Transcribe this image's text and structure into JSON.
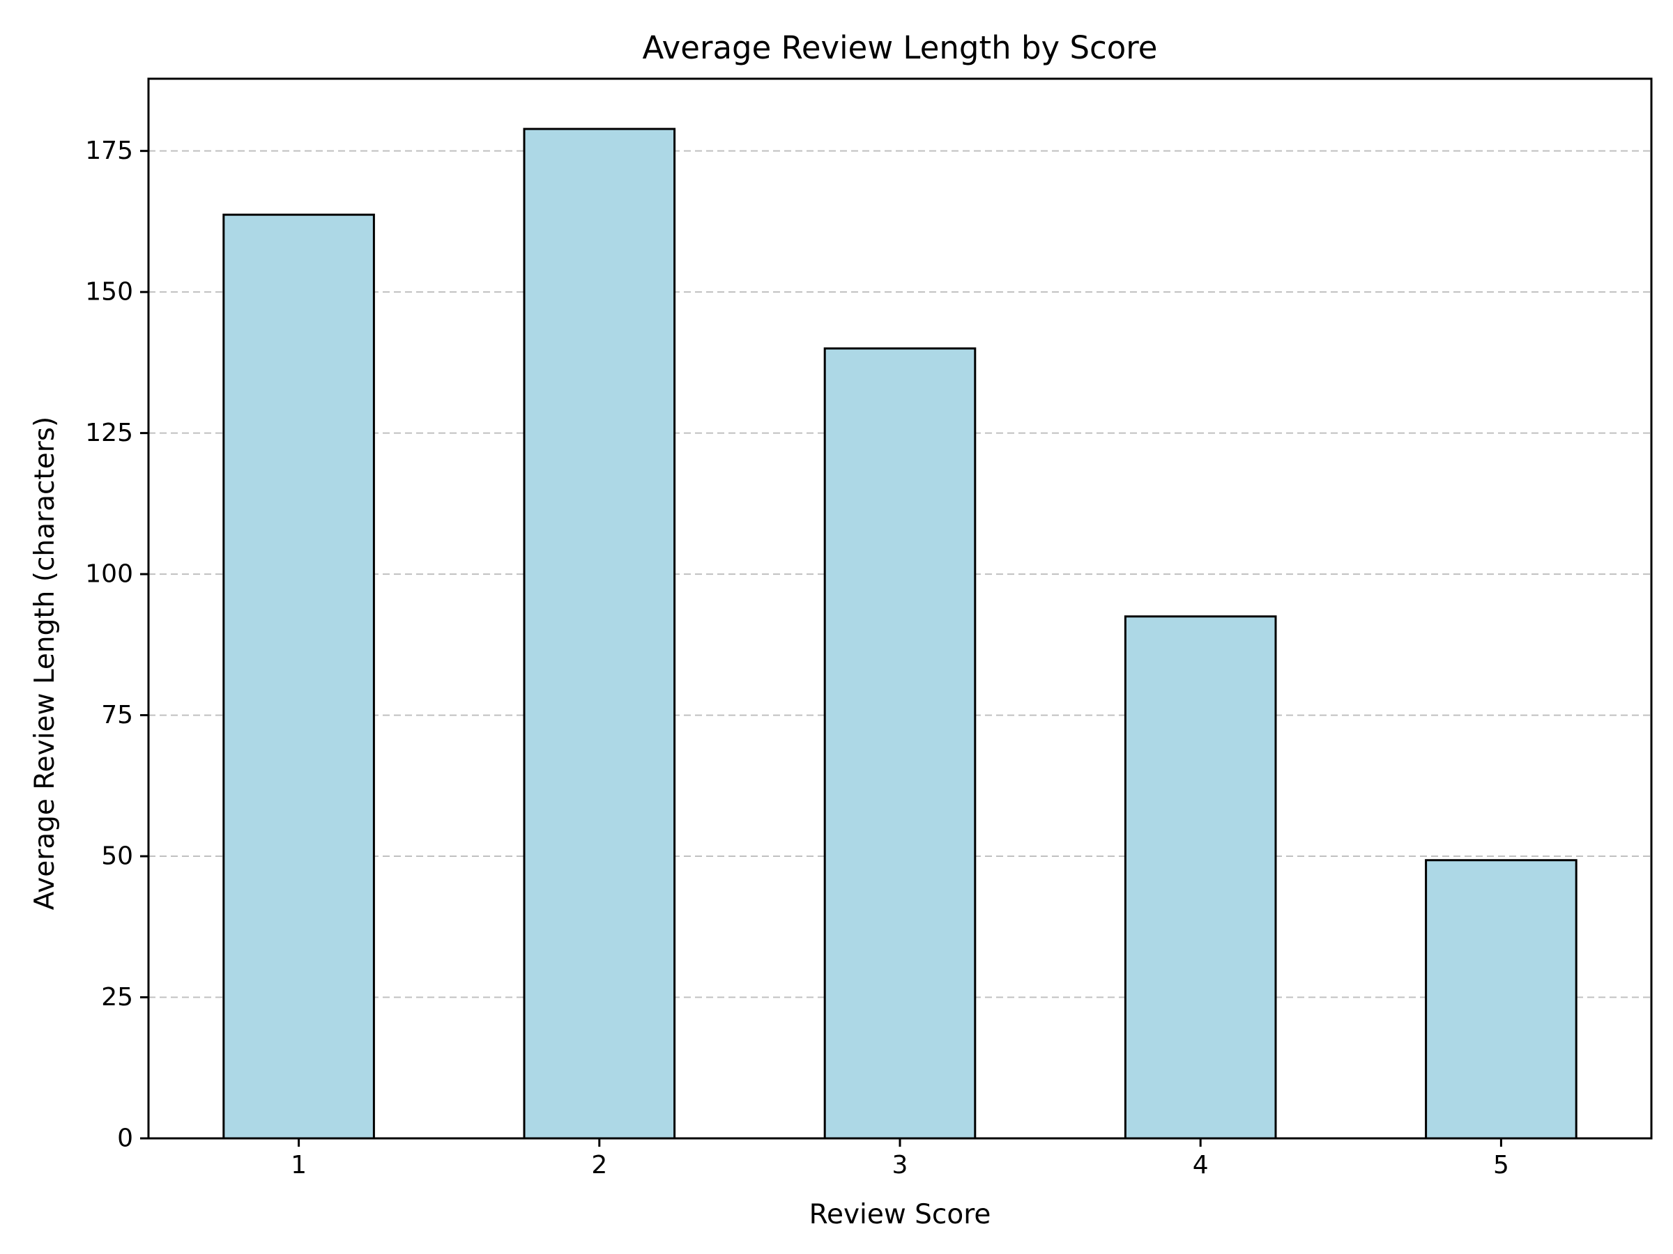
{
  "chart_data": {
    "type": "bar",
    "title": "Average Review Length by Score",
    "xlabel": "Review Score",
    "ylabel": "Average Review Length (characters)",
    "categories": [
      "1",
      "2",
      "3",
      "4",
      "5"
    ],
    "values": [
      163.7,
      178.9,
      140.0,
      92.5,
      49.3
    ],
    "ylim": [
      0,
      187.8
    ],
    "yticks": [
      0,
      25,
      50,
      75,
      100,
      125,
      150,
      175
    ],
    "grid": "y-dashed",
    "legend": "none",
    "bar_color": "#add8e6",
    "bar_edge_color": "#000000",
    "grid_color": "#c0c0c0"
  }
}
